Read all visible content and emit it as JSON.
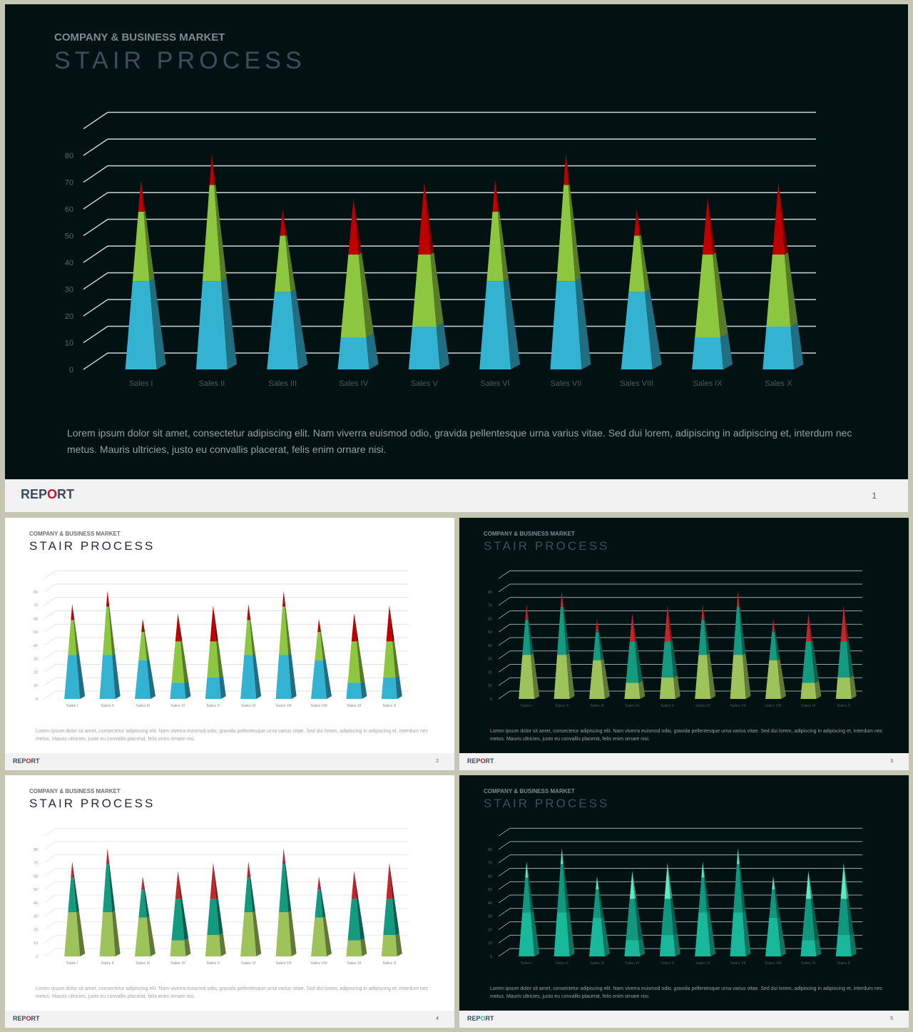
{
  "slides": [
    {
      "kicker": "COMPANY & BUSINESS MARKET",
      "title": "STAIR PROCESS",
      "body": "Lorem ipsum dolor sit amet, consectetur adipiscing elit. Nam viverra euismod odio, gravida pellentesque urna varius vitae. Sed dui lorem, adipiscing in adipiscing et, interdum nec metus. Mauris ultricies, justo eu convallis placerat, felis enim ornare nisi.",
      "logo": {
        "part1": "REP",
        "part2": "O",
        "part3": "RT"
      },
      "page": "1"
    },
    {
      "kicker": "COMPANY & BUSINESS MARKET",
      "title": "STAIR PROCESS",
      "body": "Lorem ipsum dolor sit amet, consectetur adipiscing elit. Nam viverra euismod odio, gravida pellentesque urna varius vitae. Sed dui lorem, adipiscing in adipiscing et, interdum nec metus. Mauris ultricies, justo eu convallis placerat, felis enim ornare nisi.",
      "logo": {
        "part1": "REP",
        "part2": "O",
        "part3": "RT"
      },
      "page": "2"
    },
    {
      "kicker": "COMPANY & BUSINESS MARKET",
      "title": "STAIR PROCESS",
      "body": "Lorem ipsum dolor sit amet, consectetur adipiscing elit. Nam viverra euismod odio, gravida pellentesque urna varius vitae. Sed dui lorem, adipiscing in adipiscing et, interdum nec metus. Mauris ultricies, justo eu convallis placerat, felis enim ornare nisi.",
      "logo": {
        "part1": "REP",
        "part2": "O",
        "part3": "RT"
      },
      "page": "3"
    },
    {
      "kicker": "COMPANY & BUSINESS MARKET",
      "title": "STAIR PROCESS",
      "body": "Lorem ipsum dolor sit amet, consectetur adipiscing elit. Nam viverra euismod odio, gravida pellentesque urna varius vitae. Sed dui lorem, adipiscing in adipiscing et, interdum nec metus. Mauris ultricies, justo eu convallis placerat, felis enim ornare nisi.",
      "logo": {
        "part1": "REP",
        "part2": "O",
        "part3": "RT"
      },
      "page": "4"
    },
    {
      "kicker": "COMPANY & BUSINESS MARKET",
      "title": "STAIR PROCESS",
      "body": "Lorem ipsum dolor sit amet, consectetur adipiscing elit. Nam viverra euismod odio, gravida pellentesque urna varius vitae. Sed dui lorem, adipiscing in adipiscing et, interdum nec metus. Mauris ultricies, justo eu convallis placerat, felis enim ornare nisi.",
      "logo": {
        "part1": "REP",
        "part2": "O",
        "part3": "RT"
      },
      "page": "5"
    }
  ],
  "chart_data": {
    "type": "bar",
    "style": "stacked 3D pyramid",
    "categories": [
      "Sales I",
      "Sales II",
      "Sales III",
      "Sales IV",
      "Sales V",
      "Sales VI",
      "Sales VII",
      "Sales VIII",
      "Sales IX",
      "Sales X"
    ],
    "series": [
      {
        "values": [
          33,
          33,
          29,
          12,
          16,
          33,
          33,
          29,
          12,
          16
        ]
      },
      {
        "values": [
          26,
          36,
          21,
          31,
          27,
          26,
          36,
          21,
          31,
          27
        ]
      },
      {
        "values": [
          12,
          12,
          10,
          21,
          27,
          12,
          12,
          10,
          21,
          27
        ]
      }
    ],
    "yticks": [
      "0",
      "10",
      "20",
      "30",
      "40",
      "50",
      "60",
      "70",
      "80"
    ],
    "ylim": [
      0,
      80
    ],
    "grid": true
  },
  "themes": [
    {
      "colors": [
        "#33b2d1",
        "#8dc63f",
        "#c00000"
      ],
      "grid": "#d0d4d6"
    },
    {
      "colors": [
        "#33b2d1",
        "#8dc63f",
        "#c00000"
      ],
      "grid": "#d9d9d9"
    },
    {
      "colors": [
        "#9dc35a",
        "#149a7f",
        "#c0272d"
      ],
      "grid": "#d0d4d6"
    },
    {
      "colors": [
        "#9dc35a",
        "#149a7f",
        "#c0272d"
      ],
      "grid": "#e3e3e3"
    },
    {
      "colors": [
        "#19b89a",
        "#12977f",
        "#5fe8c2"
      ],
      "grid": "#d0d4d6"
    }
  ]
}
